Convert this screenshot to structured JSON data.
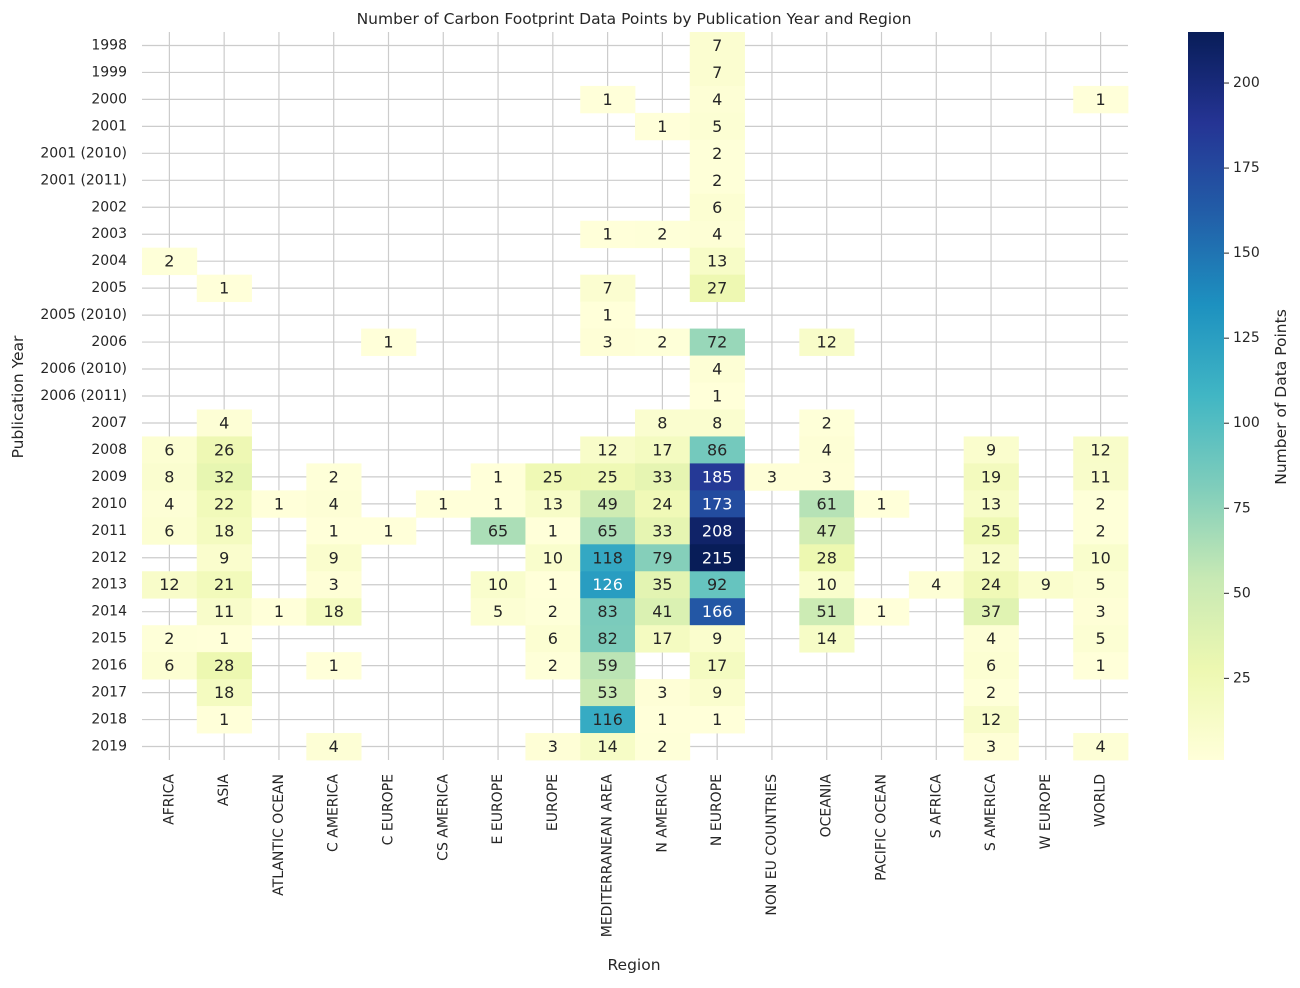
{
  "chart_data": {
    "type": "heatmap",
    "title": "Number of Carbon Footprint Data Points by Publication Year and Region",
    "xlabel": "Region",
    "ylabel": "Publication Year",
    "colorbar_label": "Number of Data Points",
    "colorbar_ticks": [
      25,
      50,
      75,
      100,
      125,
      150,
      175,
      200
    ],
    "colormap": "YlGnBu",
    "value_range": [
      1,
      215
    ],
    "grid": true,
    "x_categories": [
      "AFRICA",
      "ASIA",
      "ATLANTIC OCEAN",
      "C AMERICA",
      "C EUROPE",
      "CS AMERICA",
      "E EUROPE",
      "EUROPE",
      "MEDITERRANEAN AREA",
      "N AMERICA",
      "N EUROPE",
      "NON EU COUNTRIES",
      "OCEANIA",
      "PACIFIC OCEAN",
      "S AFRICA",
      "S AMERICA",
      "W EUROPE",
      "WORLD"
    ],
    "y_categories": [
      "1998",
      "1999",
      "2000",
      "2001",
      "2001 (2010)",
      "2001 (2011)",
      "2002",
      "2003",
      "2004",
      "2005",
      "2005 (2010)",
      "2006",
      "2006 (2010)",
      "2006 (2011)",
      "2007",
      "2008",
      "2009",
      "2010",
      "2011",
      "2012",
      "2013",
      "2014",
      "2015",
      "2016",
      "2017",
      "2018",
      "2019"
    ],
    "values": [
      [
        null,
        null,
        null,
        null,
        null,
        null,
        null,
        null,
        null,
        null,
        7,
        null,
        null,
        null,
        null,
        null,
        null,
        null
      ],
      [
        null,
        null,
        null,
        null,
        null,
        null,
        null,
        null,
        null,
        null,
        7,
        null,
        null,
        null,
        null,
        null,
        null,
        null
      ],
      [
        null,
        null,
        null,
        null,
        null,
        null,
        null,
        null,
        1,
        null,
        4,
        null,
        null,
        null,
        null,
        null,
        null,
        1
      ],
      [
        null,
        null,
        null,
        null,
        null,
        null,
        null,
        null,
        null,
        1,
        5,
        null,
        null,
        null,
        null,
        null,
        null,
        null
      ],
      [
        null,
        null,
        null,
        null,
        null,
        null,
        null,
        null,
        null,
        null,
        2,
        null,
        null,
        null,
        null,
        null,
        null,
        null
      ],
      [
        null,
        null,
        null,
        null,
        null,
        null,
        null,
        null,
        null,
        null,
        2,
        null,
        null,
        null,
        null,
        null,
        null,
        null
      ],
      [
        null,
        null,
        null,
        null,
        null,
        null,
        null,
        null,
        null,
        null,
        6,
        null,
        null,
        null,
        null,
        null,
        null,
        null
      ],
      [
        null,
        null,
        null,
        null,
        null,
        null,
        null,
        null,
        1,
        2,
        4,
        null,
        null,
        null,
        null,
        null,
        null,
        null
      ],
      [
        2,
        null,
        null,
        null,
        null,
        null,
        null,
        null,
        null,
        null,
        13,
        null,
        null,
        null,
        null,
        null,
        null,
        null
      ],
      [
        null,
        1,
        null,
        null,
        null,
        null,
        null,
        null,
        7,
        null,
        27,
        null,
        null,
        null,
        null,
        null,
        null,
        null
      ],
      [
        null,
        null,
        null,
        null,
        null,
        null,
        null,
        null,
        1,
        null,
        null,
        null,
        null,
        null,
        null,
        null,
        null,
        null
      ],
      [
        null,
        null,
        null,
        null,
        1,
        null,
        null,
        null,
        3,
        2,
        72,
        null,
        12,
        null,
        null,
        null,
        null,
        null
      ],
      [
        null,
        null,
        null,
        null,
        null,
        null,
        null,
        null,
        null,
        null,
        4,
        null,
        null,
        null,
        null,
        null,
        null,
        null
      ],
      [
        null,
        null,
        null,
        null,
        null,
        null,
        null,
        null,
        null,
        null,
        1,
        null,
        null,
        null,
        null,
        null,
        null,
        null
      ],
      [
        null,
        4,
        null,
        null,
        null,
        null,
        null,
        null,
        null,
        8,
        8,
        null,
        2,
        null,
        null,
        null,
        null,
        null
      ],
      [
        6,
        26,
        null,
        null,
        null,
        null,
        null,
        null,
        12,
        17,
        86,
        null,
        4,
        null,
        null,
        9,
        null,
        12
      ],
      [
        8,
        32,
        null,
        2,
        null,
        null,
        1,
        25,
        25,
        33,
        185,
        3,
        3,
        null,
        null,
        19,
        null,
        11
      ],
      [
        4,
        22,
        1,
        4,
        null,
        1,
        1,
        13,
        49,
        24,
        173,
        null,
        61,
        1,
        null,
        13,
        null,
        2
      ],
      [
        6,
        18,
        null,
        1,
        1,
        null,
        65,
        1,
        65,
        33,
        208,
        null,
        47,
        null,
        null,
        25,
        null,
        2
      ],
      [
        null,
        9,
        null,
        9,
        null,
        null,
        null,
        10,
        118,
        79,
        215,
        null,
        28,
        null,
        null,
        12,
        null,
        10
      ],
      [
        12,
        21,
        null,
        3,
        null,
        null,
        10,
        1,
        126,
        35,
        92,
        null,
        10,
        null,
        4,
        24,
        9,
        5
      ],
      [
        null,
        11,
        1,
        18,
        null,
        null,
        5,
        2,
        83,
        41,
        166,
        null,
        51,
        1,
        null,
        37,
        null,
        3
      ],
      [
        2,
        1,
        null,
        null,
        null,
        null,
        null,
        6,
        82,
        17,
        9,
        null,
        14,
        null,
        null,
        4,
        null,
        5
      ],
      [
        6,
        28,
        null,
        1,
        null,
        null,
        null,
        2,
        59,
        null,
        17,
        null,
        null,
        null,
        null,
        6,
        null,
        1
      ],
      [
        null,
        18,
        null,
        null,
        null,
        null,
        null,
        null,
        53,
        3,
        9,
        null,
        null,
        null,
        null,
        2,
        null,
        null
      ],
      [
        null,
        1,
        null,
        null,
        null,
        null,
        null,
        null,
        116,
        1,
        1,
        null,
        null,
        null,
        null,
        12,
        null,
        null
      ],
      [
        null,
        null,
        null,
        4,
        null,
        null,
        null,
        3,
        14,
        2,
        null,
        null,
        null,
        null,
        null,
        3,
        null,
        4
      ]
    ]
  }
}
